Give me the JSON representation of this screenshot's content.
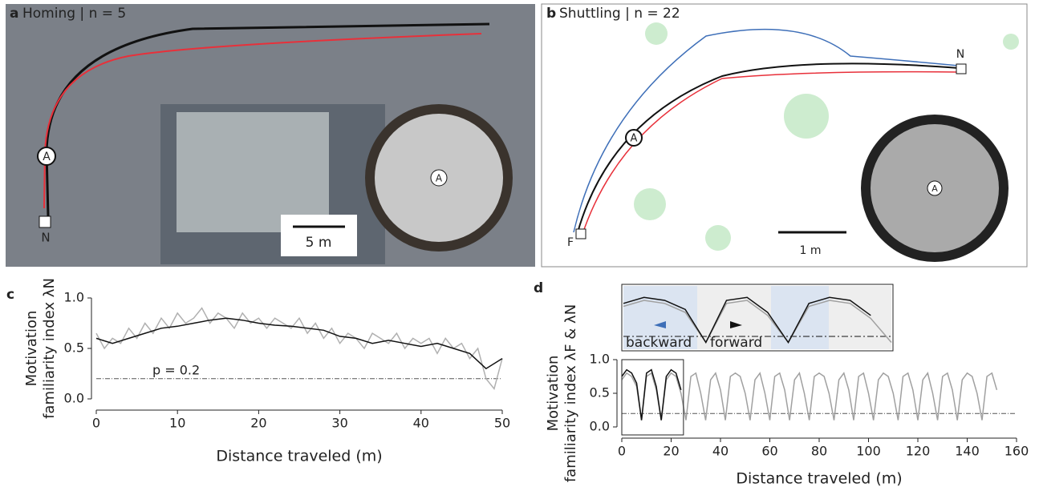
{
  "panels": {
    "a": {
      "letter": "a",
      "title": "Homing | n = 5",
      "nest": "N",
      "agent": "A",
      "scale": "5 m"
    },
    "b": {
      "letter": "b",
      "title": "Shuttling | n = 22",
      "nest": "N",
      "feeder": "F",
      "agent": "A",
      "scale": "1 m"
    }
  },
  "chart_data": [
    {
      "type": "line",
      "letter": "c",
      "ylabel": "Motivation",
      "ylabel2": "familiarity index λN",
      "xlabel": "Distance traveled (m)",
      "xlim": [
        0,
        50
      ],
      "xticks": [
        0,
        10,
        20,
        30,
        40,
        50
      ],
      "ylim": [
        0,
        1
      ],
      "yticks": [
        {
          "value": 0,
          "label": "0.0"
        },
        {
          "value": 0.5,
          "label": "0.5"
        },
        {
          "value": 1,
          "label": "1.0"
        }
      ],
      "threshold": 0.2,
      "annotation": "p = 0.2",
      "series": [
        {
          "color": "#b0b0b0",
          "x": [
            0,
            1,
            2,
            3,
            4,
            5,
            6,
            7,
            8,
            9,
            10,
            11,
            12,
            13,
            14,
            15,
            16,
            17,
            18,
            19,
            20,
            21,
            22,
            23,
            24,
            25,
            26,
            27,
            28,
            29,
            30,
            31,
            32,
            33,
            34,
            35,
            36,
            37,
            38,
            39,
            40,
            41,
            42,
            43,
            44,
            45,
            46,
            47,
            48,
            49,
            50
          ],
          "values": [
            0.65,
            0.5,
            0.6,
            0.55,
            0.7,
            0.6,
            0.75,
            0.65,
            0.8,
            0.7,
            0.85,
            0.75,
            0.8,
            0.9,
            0.75,
            0.85,
            0.8,
            0.7,
            0.85,
            0.75,
            0.8,
            0.7,
            0.8,
            0.75,
            0.7,
            0.8,
            0.65,
            0.75,
            0.6,
            0.7,
            0.55,
            0.65,
            0.6,
            0.5,
            0.65,
            0.6,
            0.55,
            0.65,
            0.5,
            0.6,
            0.55,
            0.6,
            0.45,
            0.6,
            0.5,
            0.55,
            0.4,
            0.5,
            0.2,
            0.1,
            0.4
          ]
        },
        {
          "color": "#111111",
          "x": [
            0,
            2,
            4,
            6,
            8,
            10,
            12,
            14,
            16,
            18,
            20,
            22,
            24,
            26,
            28,
            30,
            32,
            34,
            36,
            38,
            40,
            42,
            44,
            46,
            48,
            50
          ],
          "values": [
            0.6,
            0.55,
            0.6,
            0.65,
            0.7,
            0.72,
            0.75,
            0.78,
            0.8,
            0.78,
            0.75,
            0.73,
            0.72,
            0.7,
            0.68,
            0.62,
            0.6,
            0.55,
            0.58,
            0.55,
            0.52,
            0.55,
            0.5,
            0.45,
            0.3,
            0.4
          ]
        }
      ]
    },
    {
      "type": "line",
      "letter": "d",
      "ylabel": "Motivation",
      "ylabel2": "familiarity index λF & λN",
      "xlabel": "Distance traveled (m)",
      "xlim": [
        0,
        160
      ],
      "xticks": [
        0,
        20,
        40,
        60,
        80,
        100,
        120,
        140,
        160
      ],
      "ylim": [
        0,
        1
      ],
      "yticks": [
        {
          "value": 0,
          "label": "0.0"
        },
        {
          "value": 0.5,
          "label": "0.5"
        },
        {
          "value": 1,
          "label": "1.0"
        }
      ],
      "threshold": 0.2,
      "inset_labels": [
        "backward",
        "forward"
      ],
      "series": [
        {
          "color": "#a0a0a0",
          "x": [
            0,
            2,
            4,
            6,
            8,
            10,
            12,
            14,
            16,
            18,
            20,
            22,
            24,
            26,
            28,
            30,
            32,
            34,
            36,
            38,
            40,
            42,
            44,
            46,
            48,
            50,
            52,
            54,
            56,
            58,
            60,
            62,
            64,
            66,
            68,
            70,
            72,
            74,
            76,
            78,
            80,
            82,
            84,
            86,
            88,
            90,
            92,
            94,
            96,
            98,
            100,
            102,
            104,
            106,
            108,
            110,
            112,
            114,
            116,
            118,
            120,
            122,
            124,
            126,
            128,
            130,
            132,
            134,
            136,
            138,
            140,
            142,
            144,
            146,
            148,
            150,
            152
          ],
          "values": [
            0.7,
            0.8,
            0.75,
            0.6,
            0.1,
            0.75,
            0.8,
            0.55,
            0.1,
            0.7,
            0.8,
            0.75,
            0.5,
            0.1,
            0.75,
            0.8,
            0.5,
            0.1,
            0.7,
            0.8,
            0.55,
            0.1,
            0.75,
            0.8,
            0.75,
            0.5,
            0.1,
            0.7,
            0.8,
            0.5,
            0.1,
            0.75,
            0.8,
            0.55,
            0.1,
            0.7,
            0.8,
            0.5,
            0.1,
            0.75,
            0.8,
            0.75,
            0.5,
            0.1,
            0.7,
            0.8,
            0.55,
            0.1,
            0.75,
            0.8,
            0.5,
            0.1,
            0.7,
            0.8,
            0.75,
            0.5,
            0.1,
            0.75,
            0.8,
            0.55,
            0.1,
            0.7,
            0.8,
            0.5,
            0.1,
            0.75,
            0.8,
            0.55,
            0.1,
            0.7,
            0.8,
            0.75,
            0.5,
            0.1,
            0.75,
            0.8,
            0.55
          ]
        },
        {
          "color": "#111111",
          "x": [
            0,
            2,
            4,
            6,
            8,
            10,
            12,
            14,
            16,
            18,
            20,
            22,
            24
          ],
          "values": [
            0.75,
            0.85,
            0.8,
            0.65,
            0.1,
            0.8,
            0.85,
            0.6,
            0.1,
            0.75,
            0.85,
            0.8,
            0.55
          ]
        }
      ]
    }
  ]
}
